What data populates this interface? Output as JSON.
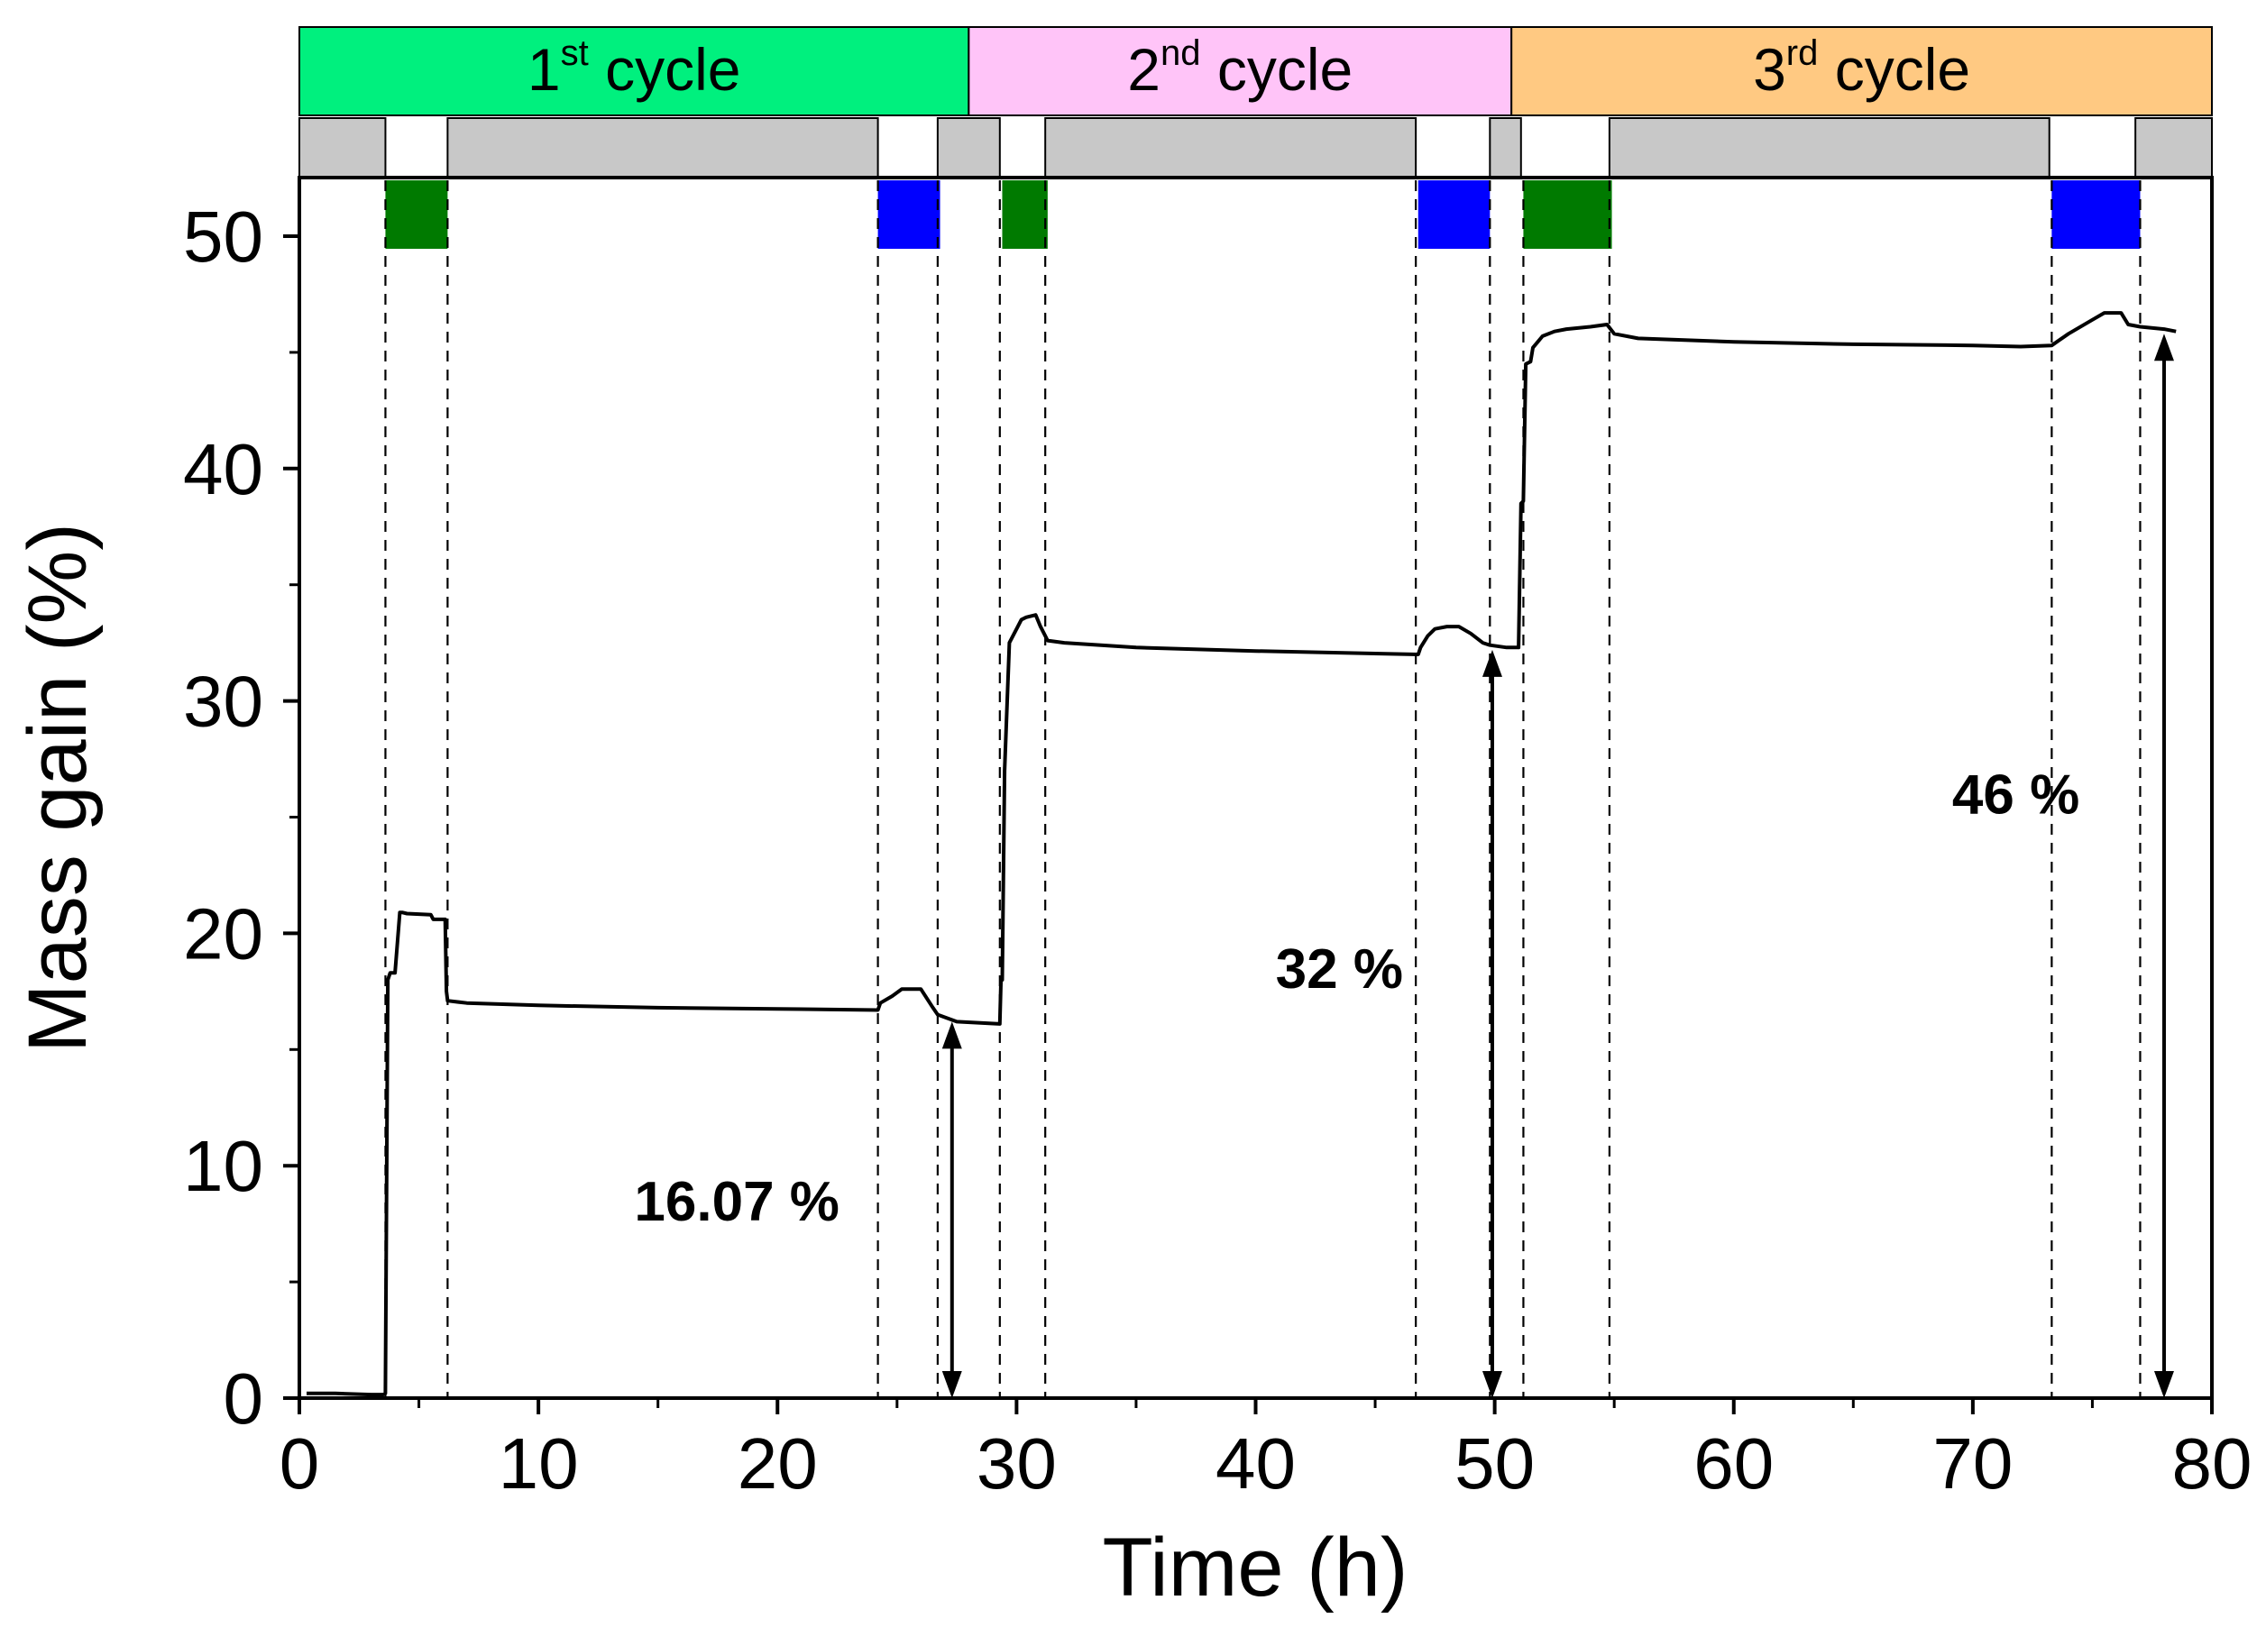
{
  "chart_data": {
    "type": "line",
    "xlabel": "Time (h)",
    "ylabel": "Mass gain (%)",
    "xlim": [
      0,
      80
    ],
    "ylim": [
      0,
      55
    ],
    "x_ticks": [
      0,
      10,
      20,
      30,
      40,
      50,
      60,
      70,
      80
    ],
    "y_ticks": [
      0,
      10,
      20,
      30,
      40,
      50
    ],
    "grid": false,
    "cycles": [
      {
        "num": "1",
        "sup": "st",
        "word": " cycle",
        "start": 0,
        "end": 28,
        "color": "#00f07e"
      },
      {
        "num": "2",
        "sup": "nd",
        "word": " cycle",
        "start": 28,
        "end": 50.7,
        "color": "#ffc4f8"
      },
      {
        "num": "3",
        "sup": "rd",
        "word": " cycle",
        "start": 50.7,
        "end": 80,
        "color": "#ffc982"
      }
    ],
    "gray_segments": [
      [
        0,
        3.6
      ],
      [
        6.2,
        24.2
      ],
      [
        26.7,
        29.3
      ],
      [
        31.2,
        46.7
      ],
      [
        49.8,
        51.1
      ],
      [
        54.8,
        73.2
      ],
      [
        76.8,
        80
      ]
    ],
    "markers": [
      {
        "type": "green",
        "start": 3.6,
        "end": 6.2,
        "color": "#007a00"
      },
      {
        "type": "blue",
        "start": 24.2,
        "end": 26.8,
        "color": "#0000ff"
      },
      {
        "type": "green",
        "start": 29.4,
        "end": 31.3,
        "color": "#007a00"
      },
      {
        "type": "blue",
        "start": 46.8,
        "end": 49.8,
        "color": "#0000ff"
      },
      {
        "type": "green",
        "start": 51.2,
        "end": 54.9,
        "color": "#007a00"
      },
      {
        "type": "blue",
        "start": 73.3,
        "end": 77.0,
        "color": "#0000ff"
      }
    ],
    "dashed_lines": [
      3.6,
      6.2,
      24.2,
      26.7,
      29.3,
      31.2,
      46.7,
      49.8,
      51.2,
      54.8,
      73.3,
      77.0
    ],
    "series": [
      {
        "name": "Mass gain",
        "color": "#000000",
        "x": [
          0.3,
          1.5,
          3.0,
          3.5,
          3.6,
          3.7,
          3.8,
          4.0,
          4.2,
          4.3,
          4.5,
          5.5,
          5.6,
          6.1,
          6.15,
          6.2,
          7.0,
          10.0,
          15.0,
          20.0,
          24.2,
          24.3,
          24.8,
          25.2,
          26.0,
          26.5,
          26.7,
          27.5,
          29.3,
          29.35,
          29.4,
          29.5,
          29.7,
          30.0,
          30.2,
          30.4,
          30.8,
          31.0,
          31.2,
          31.3,
          32.0,
          35.0,
          40.0,
          46.8,
          46.9,
          47.2,
          47.5,
          48.0,
          48.5,
          49.0,
          49.5,
          49.8,
          50.5,
          51.0,
          51.1,
          51.2,
          51.3,
          51.5,
          51.6,
          52.0,
          52.5,
          53.0,
          54.0,
          54.7,
          55.0,
          56.0,
          60.0,
          65.0,
          70.0,
          72.0,
          73.3,
          74.0,
          75.0,
          75.5,
          76.2,
          76.5,
          77.0,
          78.0,
          78.5
        ],
        "y": [
          0.2,
          0.2,
          0.15,
          0.15,
          0.2,
          18.0,
          18.3,
          18.3,
          20.9,
          20.9,
          20.85,
          20.8,
          20.6,
          20.6,
          17.5,
          17.1,
          17.0,
          16.9,
          16.8,
          16.75,
          16.7,
          17.0,
          17.3,
          17.6,
          17.6,
          16.8,
          16.5,
          16.2,
          16.1,
          18.0,
          18.0,
          27.0,
          32.5,
          33.1,
          33.5,
          33.6,
          33.7,
          33.2,
          32.8,
          32.6,
          32.5,
          32.3,
          32.15,
          32.0,
          32.3,
          32.8,
          33.1,
          33.2,
          33.2,
          32.9,
          32.5,
          32.4,
          32.3,
          32.3,
          38.5,
          38.6,
          44.5,
          44.6,
          45.2,
          45.7,
          45.9,
          46.0,
          46.1,
          46.2,
          45.8,
          45.6,
          45.45,
          45.35,
          45.3,
          45.25,
          45.3,
          45.8,
          46.4,
          46.7,
          46.7,
          46.2,
          46.1,
          46.0,
          45.9
        ]
      }
    ],
    "annotations": [
      {
        "text": "16.07 %",
        "label_x": 18.3,
        "label_y": 8.5,
        "arrow_x": 27.3,
        "y_from": 0,
        "y_to": 16.2
      },
      {
        "text": "32 %",
        "label_x": 43.5,
        "label_y": 18.5,
        "arrow_x": 49.9,
        "y_from": 0,
        "y_to": 32.2
      },
      {
        "text": "46 %",
        "label_x": 71.8,
        "label_y": 26.0,
        "arrow_x": 78.0,
        "y_from": 0,
        "y_to": 45.8
      }
    ]
  }
}
